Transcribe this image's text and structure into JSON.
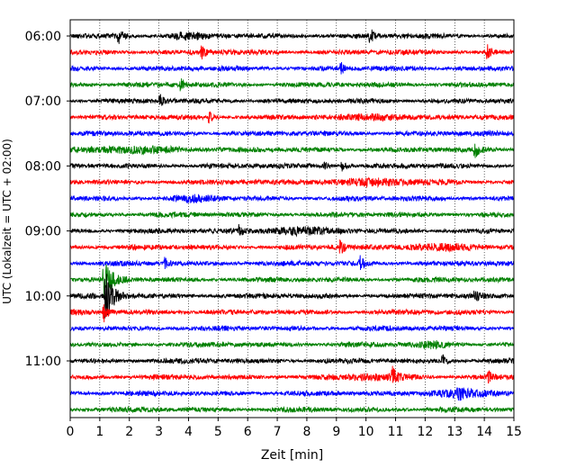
{
  "chart_data": {
    "type": "line",
    "title": "",
    "xlabel": "Zeit  [min]",
    "ylabel": "UTC (Lokalzeit = UTC + 02:00)",
    "xlim": [
      0,
      15
    ],
    "xticks": [
      0,
      1,
      2,
      3,
      4,
      5,
      6,
      7,
      8,
      9,
      10,
      11,
      12,
      13,
      14,
      15
    ],
    "xtick_labels": [
      "0",
      "1",
      "2",
      "3",
      "4",
      "5",
      "6",
      "7",
      "8",
      "9",
      "10",
      "11",
      "12",
      "13",
      "14",
      "15"
    ],
    "grid_x": true,
    "grid_style": "dotted",
    "trace_interval_min": 15,
    "ytick_labels": [
      "06:00",
      "07:00",
      "08:00",
      "09:00",
      "10:00",
      "11:00"
    ],
    "traces": [
      {
        "start": "06:00",
        "color": "#000000"
      },
      {
        "start": "06:15",
        "color": "#ff0000"
      },
      {
        "start": "06:30",
        "color": "#0000ff"
      },
      {
        "start": "06:45",
        "color": "#008000"
      },
      {
        "start": "07:00",
        "color": "#000000"
      },
      {
        "start": "07:15",
        "color": "#ff0000"
      },
      {
        "start": "07:30",
        "color": "#0000ff"
      },
      {
        "start": "07:45",
        "color": "#008000"
      },
      {
        "start": "08:00",
        "color": "#000000"
      },
      {
        "start": "08:15",
        "color": "#ff0000"
      },
      {
        "start": "08:30",
        "color": "#0000ff"
      },
      {
        "start": "08:45",
        "color": "#008000"
      },
      {
        "start": "09:00",
        "color": "#000000"
      },
      {
        "start": "09:15",
        "color": "#ff0000"
      },
      {
        "start": "09:30",
        "color": "#0000ff"
      },
      {
        "start": "09:45",
        "color": "#008000"
      },
      {
        "start": "10:00",
        "color": "#000000"
      },
      {
        "start": "10:15",
        "color": "#ff0000"
      },
      {
        "start": "10:30",
        "color": "#0000ff"
      },
      {
        "start": "10:45",
        "color": "#008000"
      },
      {
        "start": "11:00",
        "color": "#000000"
      },
      {
        "start": "11:15",
        "color": "#ff0000"
      },
      {
        "start": "11:30",
        "color": "#0000ff"
      },
      {
        "start": "11:45",
        "color": "#008000"
      }
    ],
    "events": [
      {
        "trace": "06:00",
        "t": 1.65,
        "amp": 1.0
      },
      {
        "trace": "06:00",
        "t": 10.15,
        "amp": 1.3
      },
      {
        "trace": "06:15",
        "t": 4.45,
        "amp": 0.9
      },
      {
        "trace": "06:15",
        "t": 14.1,
        "amp": 1.1
      },
      {
        "trace": "06:30",
        "t": 9.15,
        "amp": 0.9
      },
      {
        "trace": "06:45",
        "t": 3.75,
        "amp": 1.0
      },
      {
        "trace": "07:00",
        "t": 3.05,
        "amp": 0.9
      },
      {
        "trace": "07:15",
        "t": 4.7,
        "amp": 0.8
      },
      {
        "trace": "07:45",
        "t": 13.7,
        "amp": 1.0
      },
      {
        "trace": "08:00",
        "t": 8.6,
        "amp": 0.8
      },
      {
        "trace": "08:00",
        "t": 9.2,
        "amp": 0.8
      },
      {
        "trace": "09:00",
        "t": 5.7,
        "amp": 0.9
      },
      {
        "trace": "09:15",
        "t": 9.15,
        "amp": 1.2
      },
      {
        "trace": "09:30",
        "t": 9.8,
        "amp": 1.0
      },
      {
        "trace": "09:30",
        "t": 3.2,
        "amp": 0.8
      },
      {
        "trace": "09:45",
        "t": 1.15,
        "amp": 2.8
      },
      {
        "trace": "10:00",
        "t": 1.2,
        "amp": 3.6
      },
      {
        "trace": "10:00",
        "t": 13.7,
        "amp": 0.8
      },
      {
        "trace": "10:15",
        "t": 1.15,
        "amp": 1.5
      },
      {
        "trace": "11:00",
        "t": 12.6,
        "amp": 1.0
      },
      {
        "trace": "11:15",
        "t": 10.9,
        "amp": 1.2
      },
      {
        "trace": "11:15",
        "t": 14.15,
        "amp": 0.8
      },
      {
        "trace": "11:30",
        "t": 13.1,
        "amp": 1.0
      }
    ],
    "noise_bursts": [
      {
        "trace": "06:00",
        "t": 4.0,
        "width": 0.8,
        "amp": 0.6
      },
      {
        "trace": "07:15",
        "t": 10.5,
        "width": 1.5,
        "amp": 0.5
      },
      {
        "trace": "07:45",
        "t": 2.5,
        "width": 2.5,
        "amp": 0.5
      },
      {
        "trace": "08:15",
        "t": 10.0,
        "width": 2.5,
        "amp": 0.5
      },
      {
        "trace": "08:30",
        "t": 4.2,
        "width": 1.0,
        "amp": 0.5
      },
      {
        "trace": "09:00",
        "t": 7.6,
        "width": 1.6,
        "amp": 0.6
      },
      {
        "trace": "09:15",
        "t": 12.3,
        "width": 1.5,
        "amp": 0.6
      },
      {
        "trace": "10:45",
        "t": 12.3,
        "width": 0.8,
        "amp": 0.5
      },
      {
        "trace": "11:15",
        "t": 10.5,
        "width": 1.5,
        "amp": 0.5
      },
      {
        "trace": "11:30",
        "t": 13.0,
        "width": 1.5,
        "amp": 0.6
      }
    ]
  }
}
